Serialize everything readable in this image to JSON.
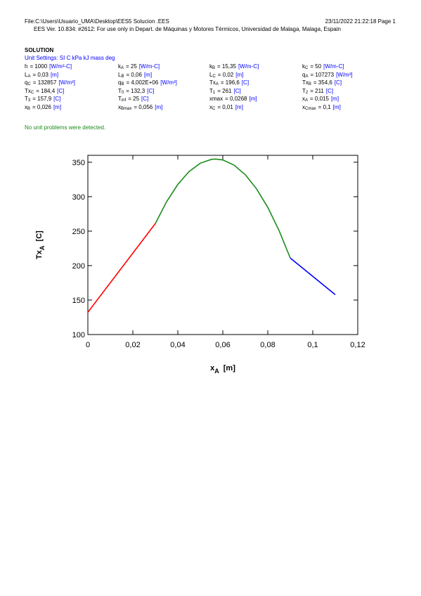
{
  "header": {
    "file": "File:C:\\Users\\Usuario_UMA\\Desktop\\EES5 Solucion .EES",
    "date": "23/11/2022 21:22:18  Page 1",
    "license": "EES Ver. 10.834: #2612:  For use only in Depart. de Máquinas y Motores Térmicos, Universidad de Malaga, Malaga,  Espain"
  },
  "solution": {
    "title": "SOLUTION",
    "unit_settings": "Unit Settings: SI C kPa kJ mass deg",
    "rows": [
      [
        {
          "name": "h",
          "sub": "",
          "value": "= 1000",
          "unit": "[W/m²-C]"
        },
        {
          "name": "k",
          "sub": "A",
          "value": "= 25",
          "unit": "[W/m-C]"
        },
        {
          "name": "k",
          "sub": "B",
          "value": "= 15,35",
          "unit": "[W/m-C]"
        },
        {
          "name": "k",
          "sub": "C",
          "value": "= 50",
          "unit": "[W/m-C]"
        }
      ],
      [
        {
          "name": "L",
          "sub": "A",
          "value": "= 0,03",
          "unit": "[m]"
        },
        {
          "name": "L",
          "sub": "B",
          "value": "= 0,06",
          "unit": "[m]"
        },
        {
          "name": "L",
          "sub": "C",
          "value": "= 0,02",
          "unit": "[m]"
        },
        {
          "name": "q",
          "sub": "A",
          "value": "= 107273",
          "unit": "[W/m³]"
        }
      ],
      [
        {
          "name": "q",
          "sub": "C",
          "value": "= 132857",
          "unit": "[W/m³]"
        },
        {
          "name": "q",
          "sub": "B",
          "value": "= 4,002E+06",
          "unit": "[W/m³]"
        },
        {
          "name": "Tx",
          "sub": "A",
          "value": "= 196,6",
          "unit": "[C]"
        },
        {
          "name": "Tx",
          "sub": "B",
          "value": "= 354,6",
          "unit": "[C]"
        }
      ],
      [
        {
          "name": "Tx",
          "sub": "C",
          "value": "= 184,4",
          "unit": "[C]"
        },
        {
          "name": "T",
          "sub": "0",
          "value": "= 132,3",
          "unit": "[C]"
        },
        {
          "name": "T",
          "sub": "1",
          "value": "= 261",
          "unit": "[C]"
        },
        {
          "name": "T",
          "sub": "2",
          "value": "= 211",
          "unit": "[C]"
        }
      ],
      [
        {
          "name": "T",
          "sub": "3",
          "value": "= 157,9",
          "unit": "[C]"
        },
        {
          "name": "T",
          "sub": "inf",
          "value": "= 25",
          "unit": "[C]"
        },
        {
          "name": "xmax",
          "sub": "",
          "value": "= 0,0268",
          "unit": "[m]"
        },
        {
          "name": "x",
          "sub": "A",
          "value": "= 0,015",
          "unit": "[m]"
        }
      ],
      [
        {
          "name": "x",
          "sub": "B",
          "value": "= 0,026",
          "unit": "[m]"
        },
        {
          "name": "x",
          "sub": "Bmax",
          "value": "= 0,056",
          "unit": "[m]"
        },
        {
          "name": "x",
          "sub": "C",
          "value": "= 0,01",
          "unit": "[m]"
        },
        {
          "name": "x",
          "sub": "Cmax",
          "value": "= 0,1",
          "unit": "[m]"
        }
      ]
    ],
    "status": "No unit problems were detected."
  },
  "chart_data": {
    "type": "line",
    "xlabel": {
      "name": "x",
      "sub": "A",
      "unit": "[m]"
    },
    "ylabel": {
      "name": "Tx",
      "sub": "A",
      "unit": "[C]"
    },
    "xlim": [
      0,
      0.12
    ],
    "ylim": [
      100,
      360
    ],
    "xticks": [
      {
        "value": 0,
        "label": "0"
      },
      {
        "value": 0.02,
        "label": "0,02"
      },
      {
        "value": 0.04,
        "label": "0,04"
      },
      {
        "value": 0.06,
        "label": "0,06"
      },
      {
        "value": 0.08,
        "label": "0,08"
      },
      {
        "value": 0.1,
        "label": "0,1"
      },
      {
        "value": 0.12,
        "label": "0,12"
      }
    ],
    "yticks": [
      100,
      150,
      200,
      250,
      300,
      350
    ],
    "series": [
      {
        "color": "#ff0000",
        "x": [
          0,
          0.03
        ],
        "values": [
          132.3,
          261
        ]
      },
      {
        "color": "#1a8c1a",
        "x": [
          0.03,
          0.035,
          0.04,
          0.045,
          0.05,
          0.055,
          0.0568,
          0.06,
          0.065,
          0.07,
          0.075,
          0.08,
          0.085,
          0.09
        ],
        "values": [
          261,
          292.7,
          317.8,
          336.5,
          348.6,
          354.2,
          354.6,
          353.3,
          345.8,
          331.9,
          311.4,
          284.5,
          251,
          211
        ]
      },
      {
        "color": "#0000ff",
        "x": [
          0.09,
          0.11
        ],
        "values": [
          211,
          157.9
        ]
      }
    ]
  }
}
